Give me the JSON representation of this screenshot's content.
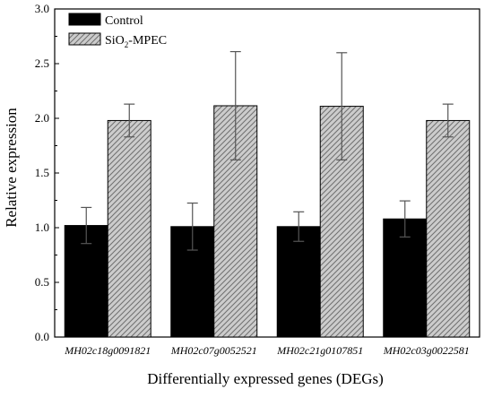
{
  "chart_data": {
    "type": "bar",
    "title": "",
    "xlabel": "Differentially expressed genes (DEGs)",
    "ylabel": "Relative expression",
    "ylim": [
      0,
      3.0
    ],
    "yticks": [
      "0.0",
      "0.5",
      "1.0",
      "1.5",
      "2.0",
      "2.5",
      "3.0"
    ],
    "categories": [
      "MH02c18g0091821",
      "MH02c07g0052521",
      "MH02c21g0107851",
      "MH02c03g0022581"
    ],
    "series": [
      {
        "name": "Control",
        "fill": "#000000",
        "values": [
          1.02,
          1.01,
          1.01,
          1.08
        ],
        "error": [
          0.165,
          0.215,
          0.135,
          0.165
        ]
      },
      {
        "name_base": "SiO",
        "name_sub": "2",
        "name_suffix": "-MPEC",
        "fill": "#cccccc",
        "hatch": "diagonal",
        "values": [
          1.98,
          2.115,
          2.11,
          1.98
        ],
        "error": [
          0.15,
          0.495,
          0.49,
          0.15
        ]
      }
    ],
    "legend_position": "top-left",
    "grid": false
  }
}
